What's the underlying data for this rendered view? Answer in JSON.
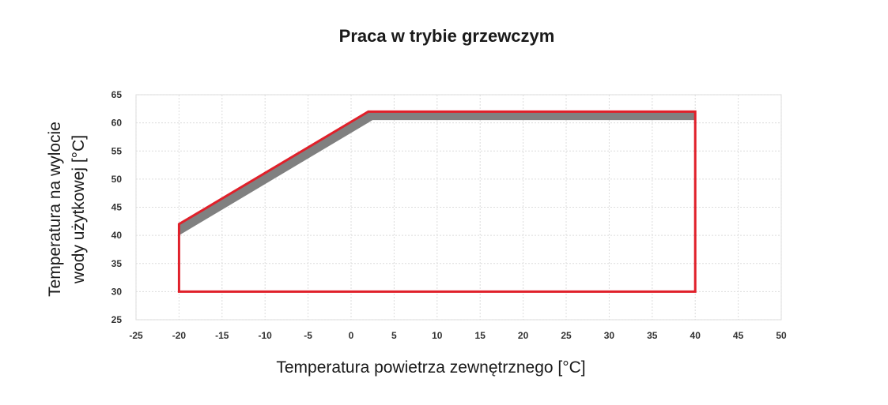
{
  "chart_data": {
    "type": "area",
    "title": "Praca w trybie grzewczym",
    "xlabel": "Temperatura powietrza zewnętrznego [°C]",
    "ylabel": [
      "Temperatura na wylocie",
      "wody użytkowej [°C]"
    ],
    "xlim": [
      -25,
      50
    ],
    "ylim": [
      25,
      65
    ],
    "xticks": [
      -25,
      -20,
      -15,
      -10,
      -5,
      0,
      5,
      10,
      15,
      20,
      25,
      30,
      35,
      40,
      45,
      50
    ],
    "yticks": [
      25,
      30,
      35,
      40,
      45,
      50,
      55,
      60,
      65
    ],
    "grid": true,
    "series": [
      {
        "kind": "band",
        "color": "#808080",
        "upper": [
          {
            "x": -20,
            "y": 42
          },
          {
            "x": 2,
            "y": 62
          },
          {
            "x": 40,
            "y": 62
          }
        ],
        "lower": [
          {
            "x": -20,
            "y": 40
          },
          {
            "x": 2.5,
            "y": 60.5
          },
          {
            "x": 40,
            "y": 60.5
          }
        ]
      },
      {
        "kind": "envelope",
        "color": "#e0202a",
        "points": [
          {
            "x": -20,
            "y": 30
          },
          {
            "x": -20,
            "y": 42
          },
          {
            "x": 2,
            "y": 62
          },
          {
            "x": 40,
            "y": 62
          },
          {
            "x": 40,
            "y": 30
          }
        ]
      }
    ]
  }
}
